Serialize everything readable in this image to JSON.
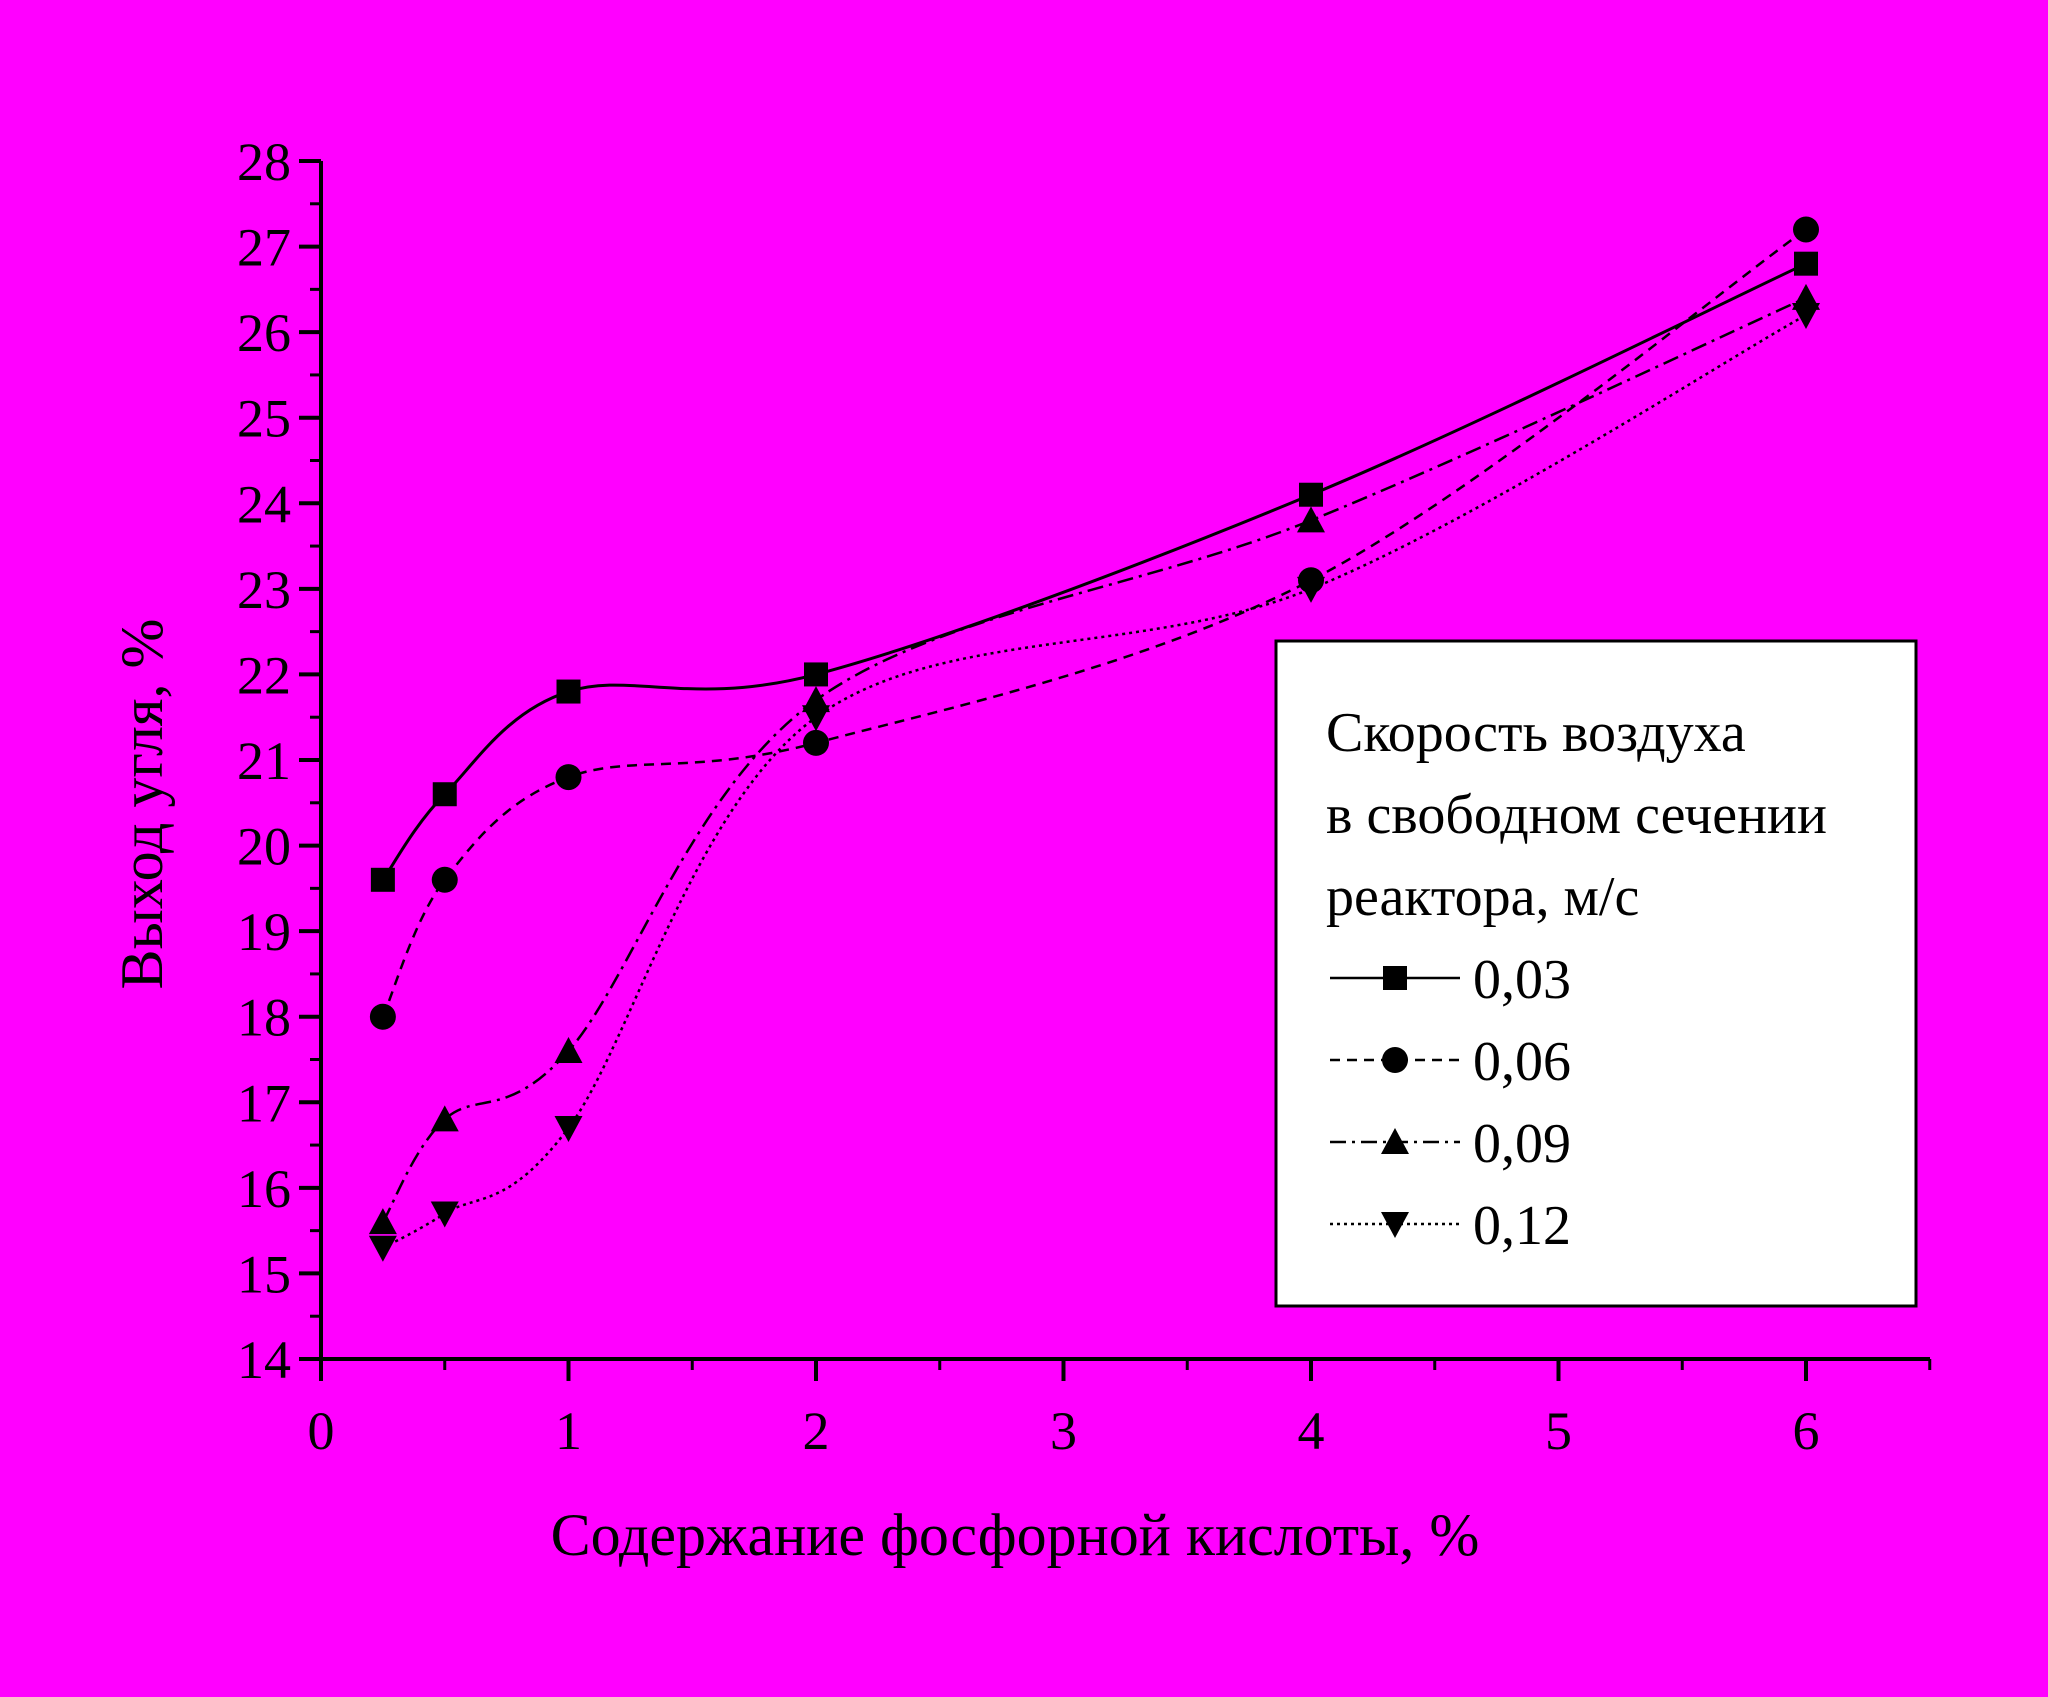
{
  "colors": {
    "background": "#ff00ff",
    "ink": "#000000",
    "legend_fill": "#ffffff"
  },
  "chart_data": {
    "type": "line",
    "xlabel": "Содержание фосфорной кислоты, %",
    "ylabel": "Выход угля, %",
    "xlim": [
      0,
      6.5
    ],
    "ylim": [
      14,
      28
    ],
    "x_ticks": [
      "0",
      "1",
      "2",
      "3",
      "4",
      "5",
      "6"
    ],
    "y_ticks": [
      "14",
      "15",
      "16",
      "17",
      "18",
      "19",
      "20",
      "21",
      "22",
      "23",
      "24",
      "25",
      "26",
      "27",
      "28"
    ],
    "grid": false,
    "legend_position": "right",
    "legend_title": [
      "Скорость воздуха",
      "в свободном сечении",
      "реактора, м/с"
    ],
    "x": [
      0.25,
      0.5,
      1,
      2,
      4,
      6
    ],
    "series": [
      {
        "name": "0,03",
        "marker": "square",
        "line": "solid",
        "values": [
          19.6,
          20.6,
          21.8,
          22.0,
          24.1,
          26.8
        ]
      },
      {
        "name": "0,06",
        "marker": "circle",
        "line": "dashed",
        "values": [
          18.0,
          19.6,
          20.8,
          21.2,
          23.1,
          27.2
        ]
      },
      {
        "name": "0,09",
        "marker": "triangle-up",
        "line": "dash-dot",
        "values": [
          15.6,
          16.8,
          17.6,
          21.7,
          23.8,
          26.4
        ]
      },
      {
        "name": "0,12",
        "marker": "triangle-down",
        "line": "dotted",
        "values": [
          15.3,
          15.7,
          16.7,
          21.5,
          23.0,
          26.2
        ]
      }
    ]
  }
}
